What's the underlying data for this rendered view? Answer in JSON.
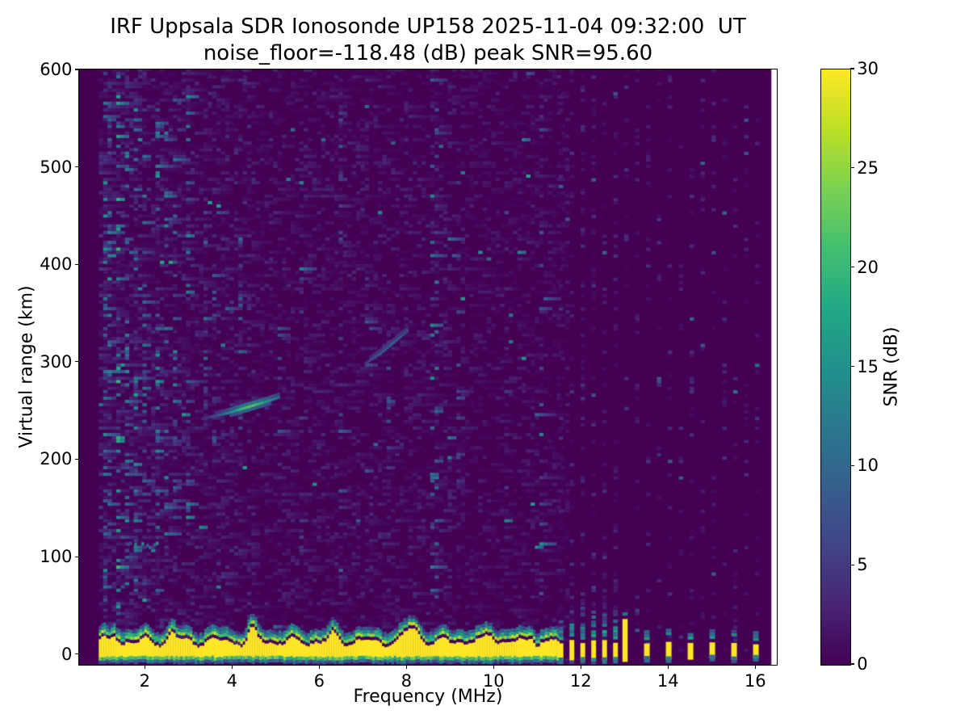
{
  "chart_data": {
    "type": "heatmap",
    "title": "IRF Uppsala SDR Ionosonde UP158 2025-11-04 09:32:00  UT",
    "subtitle": "noise_floor=-118.48 (dB) peak SNR=95.60",
    "station": "UP158",
    "datetime_ut": "2025-11-04 09:32:00",
    "noise_floor_db": -118.48,
    "peak_snr_db": 95.6,
    "xlabel": "Frequency (MHz)",
    "ylabel": "Virtual range (km)",
    "colorbar_label": "SNR (dB)",
    "xlim": [
      0.5,
      16.5
    ],
    "ylim": [
      -11,
      600
    ],
    "clim": [
      0,
      30
    ],
    "xticks": [
      2,
      4,
      6,
      8,
      10,
      12,
      14,
      16
    ],
    "yticks": [
      0,
      100,
      200,
      300,
      400,
      500,
      600
    ],
    "colorbar_ticks": [
      0,
      5,
      10,
      15,
      20,
      25,
      30
    ],
    "colormap": "viridis",
    "colormap_stops": [
      "#440154",
      "#482475",
      "#414487",
      "#355f8d",
      "#2a788e",
      "#21918c",
      "#22a884",
      "#44bf70",
      "#7ad151",
      "#bddf26",
      "#fde725"
    ],
    "sweep": {
      "f_start": 0.95,
      "f_end": 16.38
    },
    "features": {
      "ground_band": {
        "f_end": 11.48,
        "core_top_km": 11,
        "core_bot_km": -5,
        "bumps": [
          [
            1.3,
            6,
            0.08
          ],
          [
            2.62,
            9,
            0.1
          ],
          [
            4.45,
            11,
            0.12
          ],
          [
            6.3,
            7,
            0.08
          ],
          [
            8.1,
            14,
            0.2
          ],
          [
            9.9,
            8,
            0.1
          ],
          [
            10.85,
            7,
            0.08
          ]
        ]
      },
      "interrupted_band": {
        "first_center": 11.55,
        "f_end": 12.92,
        "period_mhz": 0.25,
        "width_mhz": 0.11,
        "core_top_km": 11,
        "core_bot_km": -6,
        "halo_top_km": 42
      },
      "spike": {
        "f_center": 13.02,
        "width_mhz": 0.12,
        "top_km": 36,
        "bot_km": -8
      },
      "rfi_dashes": {
        "first_center": 13.52,
        "f_end": 16.1,
        "period_mhz": 0.5,
        "width_mhz": 0.13,
        "core_top_km": 10,
        "core_bot_km": -4
      },
      "echo_traces": [
        {
          "name": "F-region echo",
          "points": [
            [
              3.3,
              240
            ],
            [
              3.6,
              243
            ],
            [
              3.9,
              246
            ],
            [
              4.2,
              250
            ],
            [
              4.5,
              254
            ],
            [
              4.8,
              258
            ],
            [
              5.05,
              262
            ]
          ],
          "peak_snr": 19,
          "peak_f": 4.4,
          "width_mhz": 0.65
        },
        {
          "name": "faint high echo",
          "points": [
            [
              7.05,
              297
            ],
            [
              7.5,
              311
            ],
            [
              8.0,
              330
            ]
          ],
          "peak_snr": 7,
          "peak_f": 7.6,
          "width_mhz": 0.55
        }
      ],
      "sporadic_e": {
        "f_start": 1.6,
        "f_end": 2.4,
        "km": 110,
        "snr": 12
      },
      "noise_stripes": [
        [
          1.05,
          0.5,
          16,
          0,
          600
        ],
        [
          1.2,
          0.35,
          14,
          60,
          600
        ],
        [
          1.35,
          0.45,
          20,
          0,
          600
        ],
        [
          1.55,
          0.3,
          15,
          60,
          560
        ],
        [
          1.75,
          0.35,
          14,
          60,
          570
        ],
        [
          2.0,
          0.25,
          12,
          60,
          560
        ],
        [
          2.25,
          0.4,
          16,
          60,
          560
        ],
        [
          2.5,
          0.3,
          14,
          100,
          540
        ],
        [
          2.7,
          0.3,
          13,
          120,
          570
        ],
        [
          2.95,
          0.35,
          15,
          100,
          580
        ],
        [
          3.35,
          0.2,
          11,
          180,
          460
        ],
        [
          3.6,
          0.15,
          9,
          200,
          420
        ],
        [
          4.15,
          0.18,
          10,
          220,
          430
        ],
        [
          5.05,
          0.15,
          8,
          80,
          360
        ],
        [
          5.5,
          0.12,
          7,
          100,
          400
        ],
        [
          6.45,
          0.22,
          10,
          60,
          580
        ],
        [
          7.05,
          0.12,
          8,
          150,
          400
        ],
        [
          7.55,
          0.15,
          8,
          120,
          460
        ],
        [
          8.5,
          0.45,
          15,
          0,
          600
        ],
        [
          8.62,
          0.3,
          12,
          0,
          600
        ],
        [
          9.15,
          0.15,
          8,
          80,
          500
        ],
        [
          10.2,
          0.12,
          6,
          100,
          480
        ],
        [
          11.05,
          0.18,
          8,
          60,
          560
        ]
      ],
      "background_density_regions": [
        [
          2.0,
          1.7
        ],
        [
          3.0,
          1.35
        ],
        [
          4.5,
          1.2
        ],
        [
          9.0,
          1.0
        ],
        [
          11.7,
          0.85
        ],
        [
          16.5,
          0.45
        ]
      ]
    }
  }
}
